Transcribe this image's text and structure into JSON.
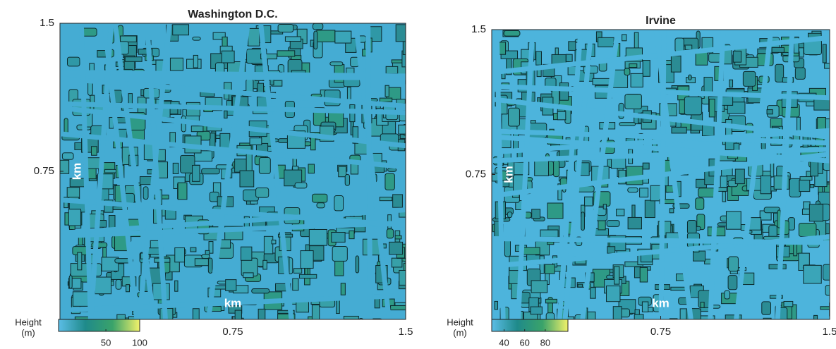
{
  "chart_data": [
    {
      "type": "map",
      "title": "Washington D.C.",
      "xlabel": "km",
      "ylabel": "km",
      "xlim": [
        0,
        1.5
      ],
      "ylim": [
        0,
        1.5
      ],
      "xticks": [
        0.75,
        1.5
      ],
      "yticks": [
        0.75,
        1.5
      ],
      "colorbar_label": [
        "Height",
        "(m)"
      ],
      "clim": [
        -20,
        100
      ],
      "cticks": [
        50,
        100
      ],
      "colors": [
        "#5bbde6",
        "#1f8a8a",
        "#3aa36a",
        "#f2f26a"
      ],
      "base_color": "#45acd3"
    },
    {
      "type": "map",
      "title": "Irvine",
      "xlabel": "km",
      "ylabel": "km",
      "xlim": [
        0,
        1.5
      ],
      "ylim": [
        0,
        1.5
      ],
      "xticks": [
        0.75,
        1.5
      ],
      "yticks": [
        0.75,
        1.5
      ],
      "colorbar_label": [
        "Height",
        "(m)"
      ],
      "clim": [
        28,
        102
      ],
      "cticks": [
        40,
        60,
        80
      ],
      "colors": [
        "#5bbde6",
        "#1f8a8a",
        "#3aa36a",
        "#f2f26a"
      ],
      "base_color": "#4db4dc"
    }
  ]
}
